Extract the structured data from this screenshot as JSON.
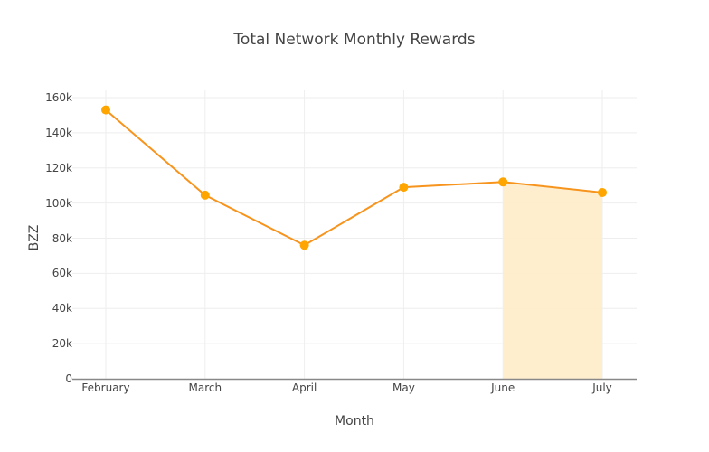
{
  "chart_data": {
    "type": "line",
    "title": "Total Network Monthly Rewards",
    "xlabel": "Month",
    "ylabel": "BZZ",
    "categories": [
      "February",
      "March",
      "April",
      "May",
      "June",
      "July"
    ],
    "series": [
      {
        "name": "Total Network Monthly Rewards",
        "values": [
          153000,
          104500,
          76000,
          109000,
          112000,
          106000
        ],
        "color": "#ff9800",
        "marker": "circle"
      }
    ],
    "highlight": {
      "from": "June",
      "to": "July",
      "fill": "#ffecc8"
    },
    "ylim": [
      0,
      160000
    ],
    "yticks": [
      0,
      20000,
      40000,
      60000,
      80000,
      100000,
      120000,
      140000,
      160000
    ],
    "ytick_labels": [
      "0",
      "20k",
      "40k",
      "60k",
      "80k",
      "100k",
      "120k",
      "140k",
      "160k"
    ],
    "grid": true,
    "legend": null
  },
  "colors": {
    "line": "#f7941d",
    "marker": "#ffa500",
    "fill": "#ffecc8",
    "grid": "#eeeeee",
    "axis": "#888888",
    "text": "#444444"
  }
}
